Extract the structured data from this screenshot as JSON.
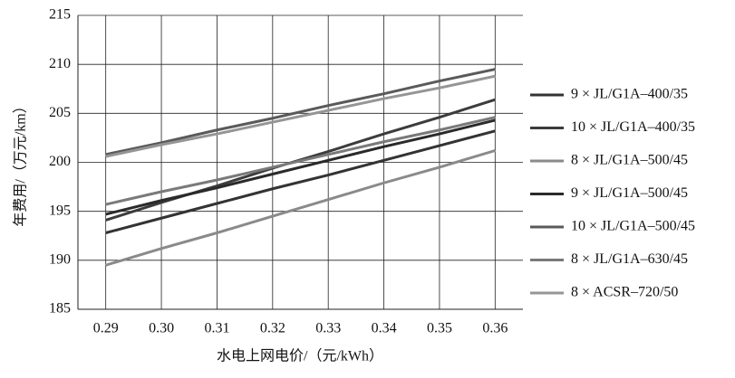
{
  "chart_data": {
    "type": "line",
    "y_label": "年费用/（万元/km）",
    "x_label": "水电上网电价/（元/kWh）",
    "x": [
      0.29,
      0.3,
      0.31,
      0.32,
      0.33,
      0.34,
      0.35,
      0.36
    ],
    "xlim": [
      0.285,
      0.365
    ],
    "xticks": [
      {
        "value": 0.29,
        "label": "0.29"
      },
      {
        "value": 0.3,
        "label": "0.30"
      },
      {
        "value": 0.31,
        "label": "0.31"
      },
      {
        "value": 0.32,
        "label": "0.32"
      },
      {
        "value": 0.33,
        "label": "0.33"
      },
      {
        "value": 0.34,
        "label": "0.34"
      },
      {
        "value": 0.35,
        "label": "0.35"
      },
      {
        "value": 0.36,
        "label": "0.36"
      }
    ],
    "ylim": [
      185,
      215
    ],
    "yticks": [
      185,
      190,
      195,
      200,
      205,
      210,
      215
    ],
    "grid": true,
    "legend": "right",
    "series": [
      {
        "name": "9 × JL/G1A–400/35",
        "color": "#333333",
        "values": [
          192.8,
          194.3,
          195.8,
          197.3,
          198.7,
          200.2,
          201.7,
          203.2
        ]
      },
      {
        "name": "10 × JL/G1A–400/35",
        "color": "#3c3c3c",
        "values": [
          194.1,
          195.9,
          197.6,
          199.4,
          201.1,
          202.9,
          204.6,
          206.4
        ]
      },
      {
        "name": "8 × JL/G1A–500/45",
        "color": "#8a8a8a",
        "values": [
          189.5,
          191.2,
          192.8,
          194.5,
          196.2,
          197.9,
          199.5,
          201.2
        ]
      },
      {
        "name": "9 × JL/G1A–500/45",
        "color": "#2a2a2a",
        "values": [
          194.7,
          196.1,
          197.4,
          198.8,
          200.2,
          201.6,
          202.9,
          204.3
        ]
      },
      {
        "name": "10 × JL/G1A–500/45",
        "color": "#5a5a5a",
        "values": [
          200.8,
          202.0,
          203.3,
          204.5,
          205.8,
          207.0,
          208.3,
          209.5
        ]
      },
      {
        "name": "8 × JL/G1A–630/45",
        "color": "#7a7a7a",
        "values": [
          195.7,
          197.0,
          198.2,
          199.5,
          200.8,
          202.1,
          203.3,
          204.6
        ]
      },
      {
        "name": "8 × ACSR–720/50",
        "color": "#959595",
        "values": [
          200.6,
          201.8,
          202.9,
          204.1,
          205.3,
          206.5,
          207.6,
          208.8
        ]
      }
    ]
  }
}
